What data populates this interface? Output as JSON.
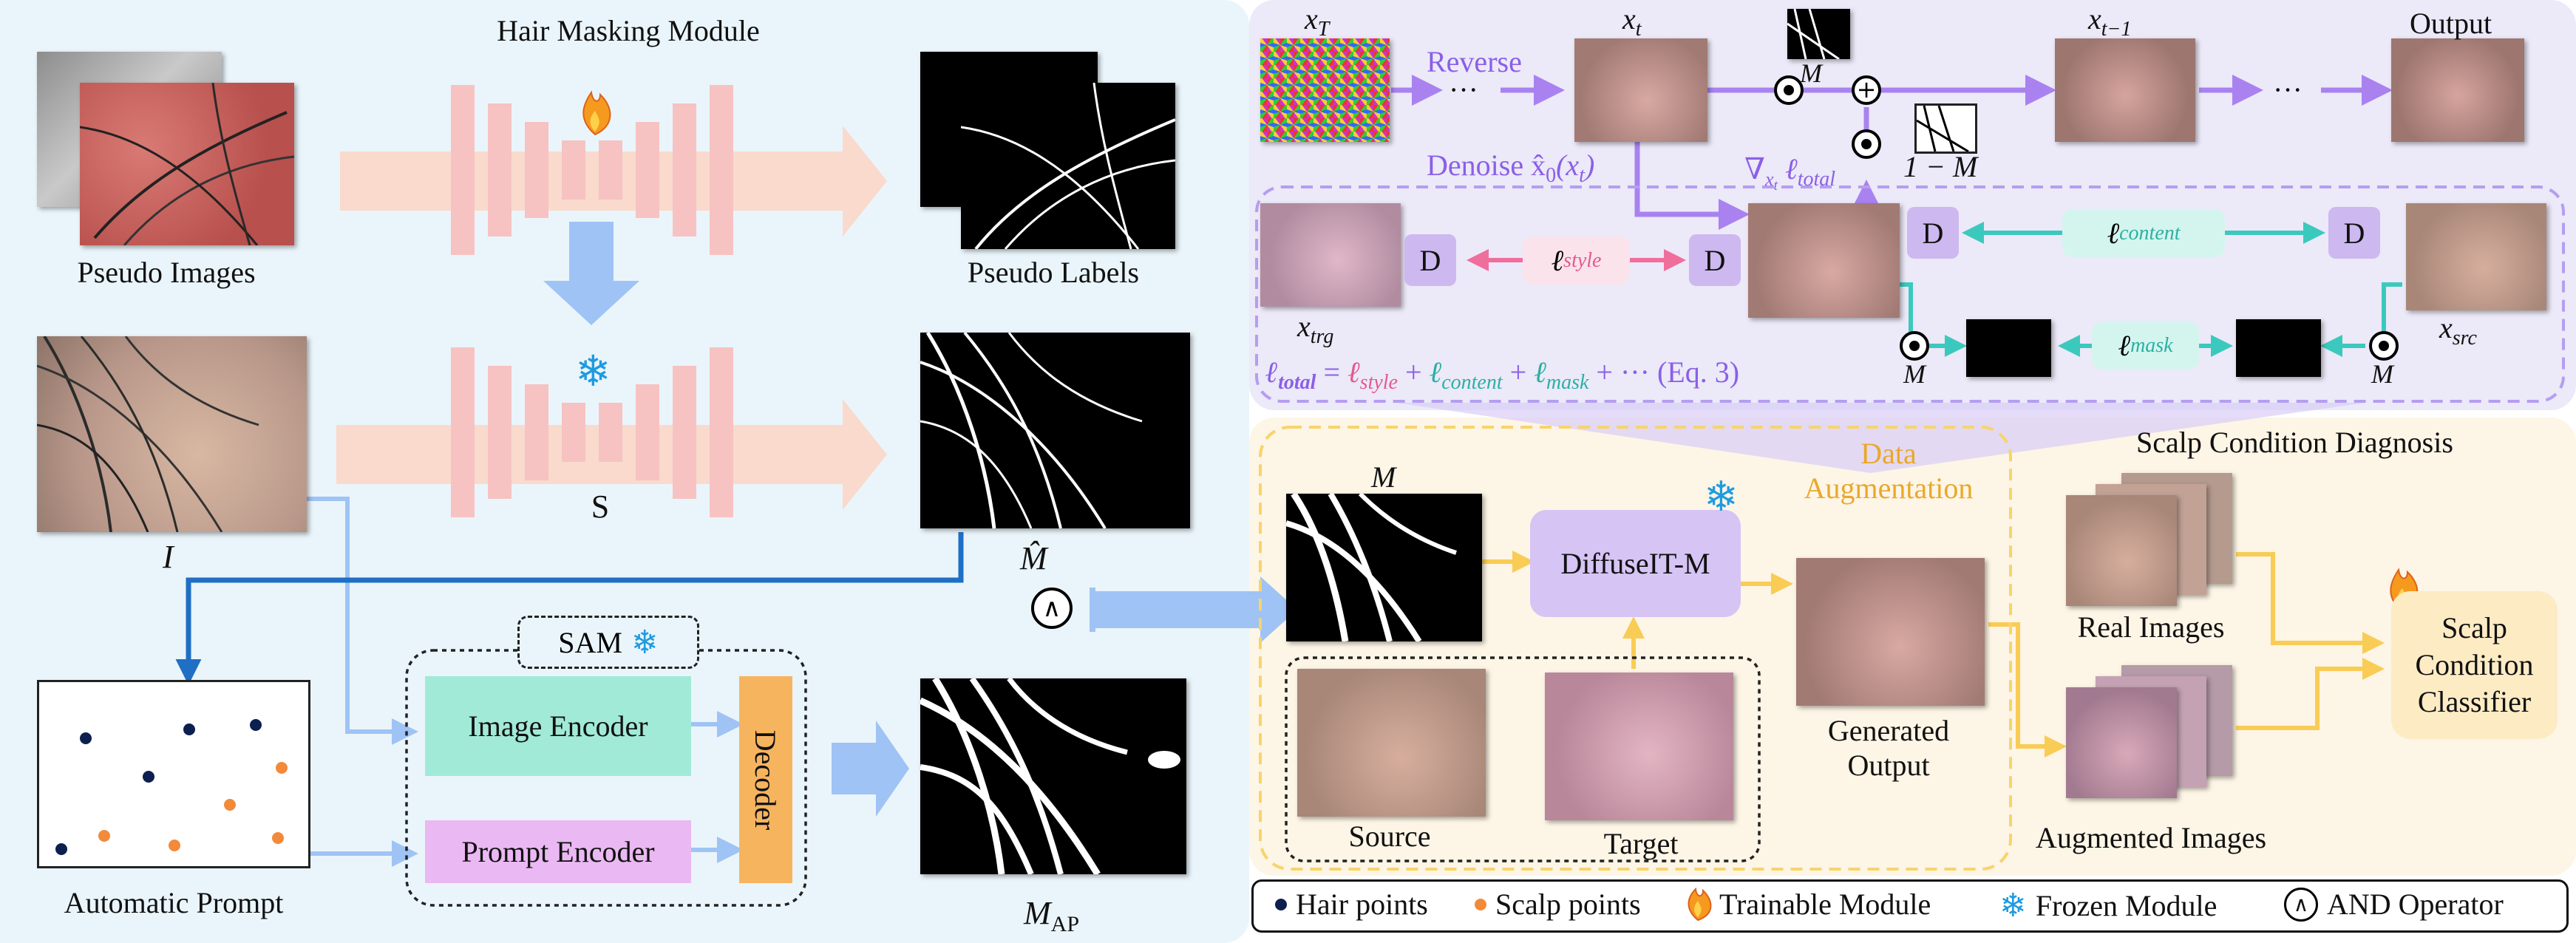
{
  "hair_masking": {
    "title": "Hair Masking Module",
    "pseudo_images": "Pseudo Images",
    "pseudo_labels": "Pseudo Labels",
    "segmenter": "S",
    "input_image": "I",
    "mask_hat": "M̂",
    "and_symbol": "∧",
    "sam": "SAM",
    "image_encoder": "Image Encoder",
    "prompt_encoder": "Prompt Encoder",
    "decoder": "Decoder",
    "automatic_prompt": "Automatic Prompt",
    "m_ap": "M",
    "m_ap_sub": "AP"
  },
  "diffusion": {
    "x_T": "x",
    "x_T_sub": "T",
    "reverse": "Reverse",
    "dots": "···",
    "x_t": "x",
    "x_t_sub": "t",
    "x_t1": "x",
    "x_t1_sub": "t−1",
    "output": "Output",
    "m_label": "M",
    "one_minus_m": "1 − M",
    "denoise": "Denoise x̂",
    "denoise_sub": "0",
    "denoise_arg": "(x",
    "denoise_arg_sub": "t",
    "denoise_close": ")",
    "grad": "∇",
    "grad_sub": "x",
    "grad_subsub": "t",
    "grad_l": "ℓ",
    "grad_l_sub": "total",
    "d": "D",
    "l_style": "ℓ",
    "l_style_sub": "style",
    "l_content": "ℓ",
    "l_content_sub": "content",
    "l_mask": "ℓ",
    "l_mask_sub": "mask",
    "x_trg": "x",
    "x_trg_sub": "trg",
    "x_src": "x",
    "x_src_sub": "src",
    "eq": {
      "lhs": "ℓ",
      "lhs_sub": "total",
      "eq": " = ",
      "t1": "ℓ",
      "t1_sub": "style",
      "plus1": " + ",
      "t2": "ℓ",
      "t2_sub": "content",
      "plus2": " + ",
      "t3": "ℓ",
      "t3_sub": "mask",
      "tail": " + ··· (Eq. 3)"
    }
  },
  "scalp": {
    "title": "Scalp Condition Diagnosis",
    "m_label": "M",
    "data_aug_1": "Data",
    "data_aug_2": "Augmentation",
    "diffuseit": "DiffuseIT-M",
    "source": "Source",
    "target": "Target",
    "generated_1": "Generated",
    "generated_2": "Output",
    "real_images": "Real Images",
    "augmented_images": "Augmented Images",
    "classifier_1": "Scalp",
    "classifier_2": "Condition",
    "classifier_3": "Classifier"
  },
  "legend": {
    "hair_points": "Hair points",
    "scalp_points": "Scalp points",
    "trainable": "Trainable Module",
    "frozen": "Frozen Module",
    "and_symbol": "∧",
    "and_operator": "AND Operator"
  },
  "colors": {
    "left_panel": "#eaf5fb",
    "top_right_panel": "#ece9f8",
    "bottom_right_panel": "#fdf5e6",
    "unet_bar": "#f7c2c2",
    "flow_arrow": "#fbd5c4",
    "blue_arrow": "#9fc3f5",
    "purple_arrow": "#a982f0",
    "teal_arrow": "#3cc9bd",
    "pink_arrow": "#f06e9c",
    "yellow_arrow": "#f9cc55",
    "image_encoder": "#a1ead7",
    "prompt_encoder": "#eab8f2",
    "decoder": "#f7b45e",
    "diffuseit": "#d6c4f5",
    "classifier": "#fdebc4",
    "hair_point": "#0d1f4e",
    "scalp_point": "#f28a3a"
  }
}
